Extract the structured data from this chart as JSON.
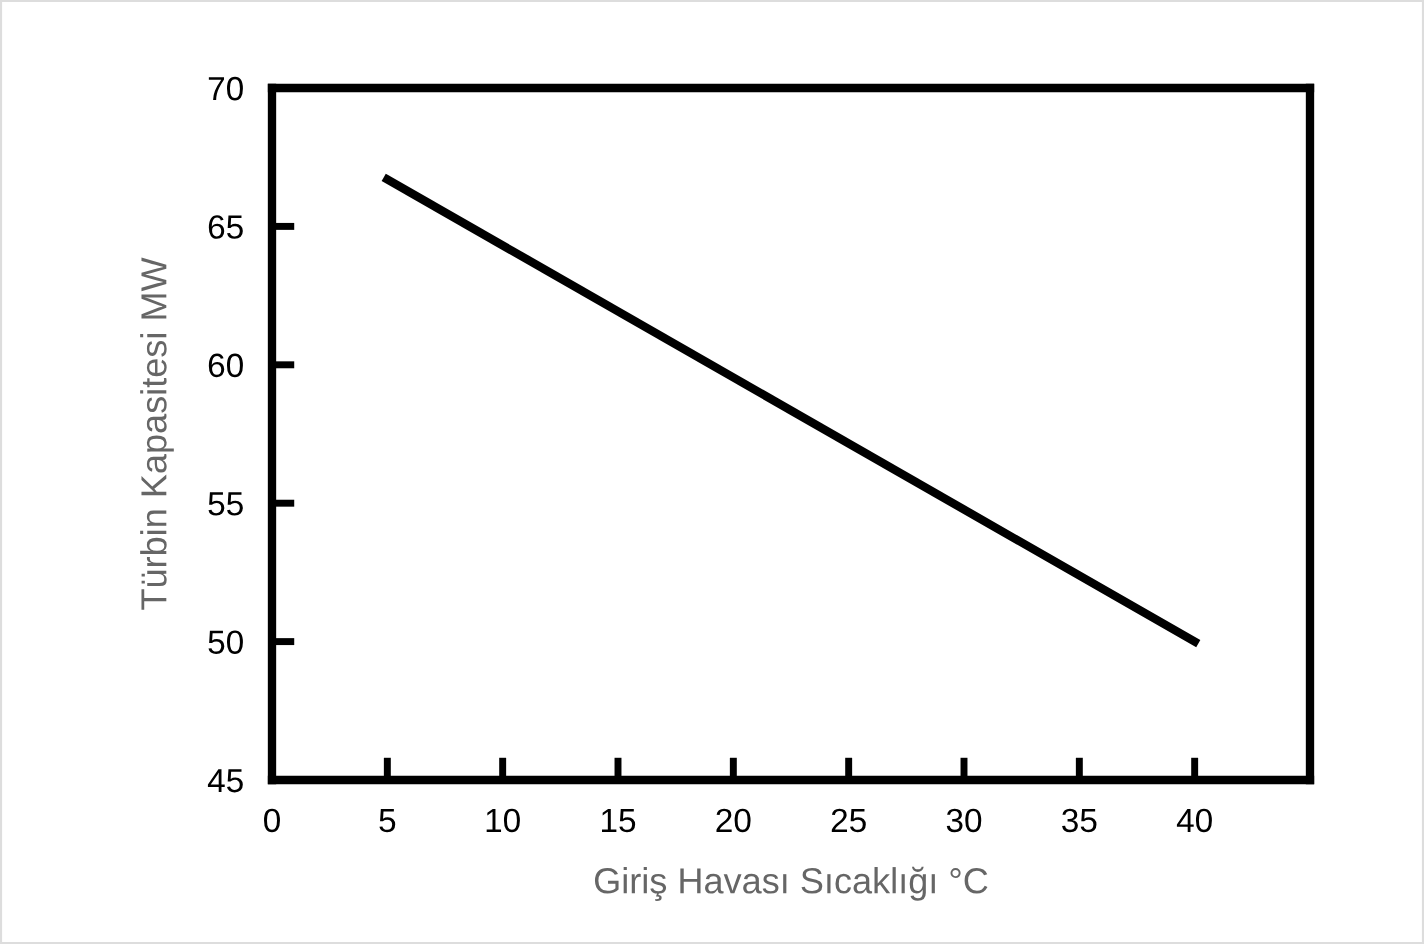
{
  "chart_data": {
    "type": "line",
    "xlabel": "Giriş Havası Sıcaklığı °C",
    "ylabel": "Türbin Kapasitesi MW",
    "x": [
      5,
      40
    ],
    "series": [
      {
        "color": "#000000",
        "values": [
          66.7,
          50
        ]
      }
    ],
    "xlim": [
      0,
      45
    ],
    "ylim": [
      45,
      70
    ],
    "xticks": [
      0,
      5,
      10,
      15,
      20,
      25,
      30,
      35,
      40
    ],
    "yticks": [
      45,
      50,
      55,
      60,
      65,
      70
    ],
    "grid": false,
    "marker": "none",
    "line_style": "solid"
  }
}
